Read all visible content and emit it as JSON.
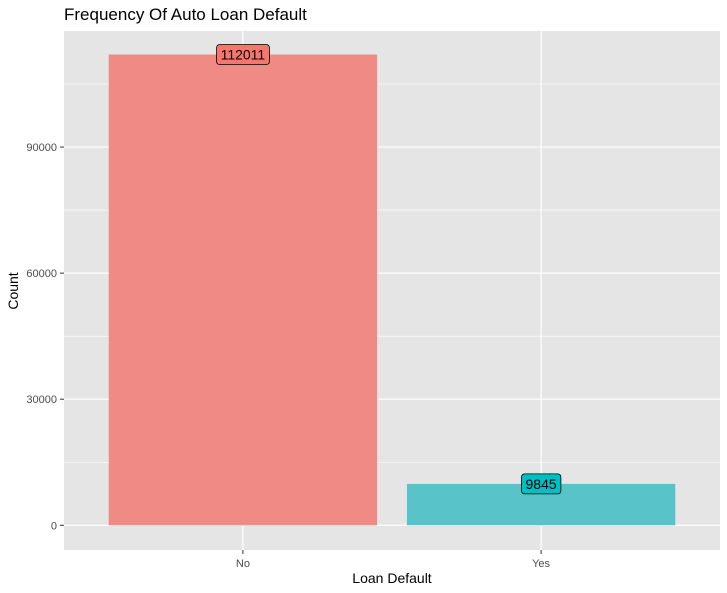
{
  "chart_data": {
    "type": "bar",
    "title": "Frequency Of Auto Loan Default",
    "xlabel": "Loan Default",
    "ylabel": "Count",
    "categories": [
      "No",
      "Yes"
    ],
    "values": [
      112011,
      9845
    ],
    "data_labels": [
      "112011",
      "9845"
    ],
    "colors": [
      "#F8766D",
      "#00BFC4"
    ],
    "bar_fill_colors": [
      "#EF8A85",
      "#58C4C9"
    ],
    "ylim": [
      0,
      117610
    ],
    "y_ticks": [
      0,
      30000,
      60000,
      90000
    ],
    "y_tick_labels": [
      "0",
      "30000",
      "60000",
      "90000"
    ],
    "grid": true,
    "legend": "none",
    "panel_background": "#E5E5E5",
    "grid_color": "#FFFFFF"
  }
}
